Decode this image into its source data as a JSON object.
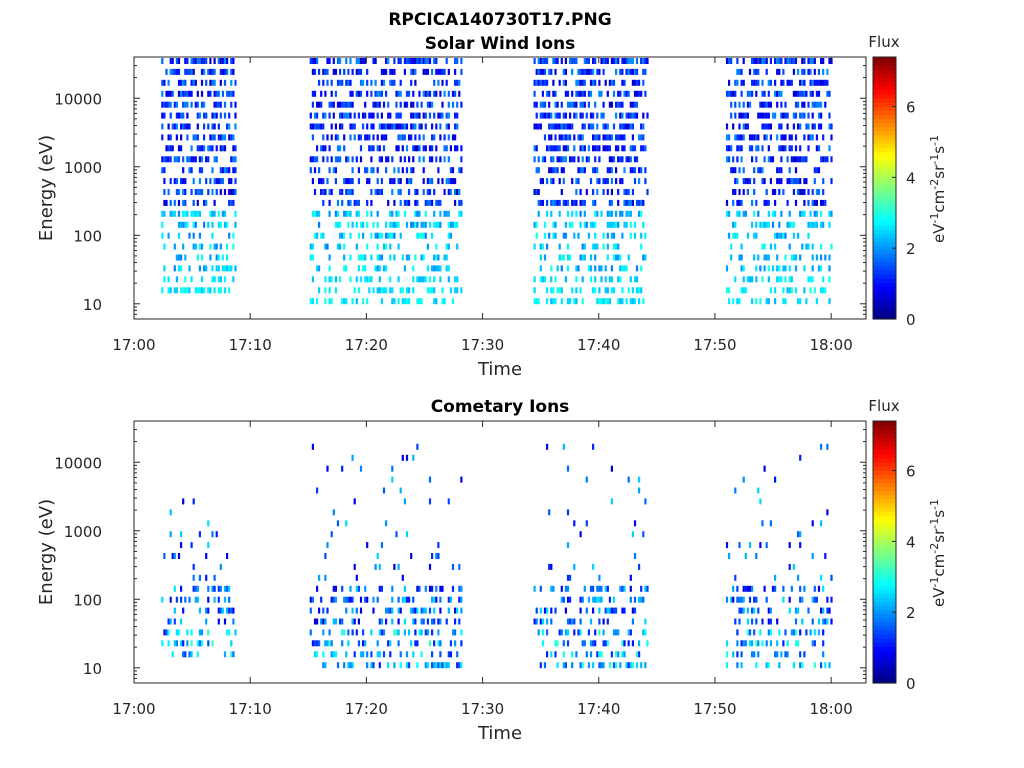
{
  "figure_title": "RPCICA140730T17.PNG",
  "colors": {
    "colormap": "jet",
    "axis": "#262626",
    "background": "#ffffff"
  },
  "chart_data": [
    {
      "type": "heatmap",
      "title": "Solar Wind Ions",
      "xlabel": "Time",
      "ylabel": "Energy (eV)",
      "x_ticks": [
        "17:00",
        "17:10",
        "17:20",
        "17:30",
        "17:40",
        "17:50",
        "18:00"
      ],
      "x_tick_minutes": [
        0,
        10,
        20,
        30,
        40,
        50,
        60
      ],
      "xlim_minutes": [
        0,
        63
      ],
      "y_ticks": [
        "10",
        "100",
        "1000",
        "10000"
      ],
      "y_tick_values": [
        10,
        100,
        1000,
        10000
      ],
      "ylim": [
        6,
        40000
      ],
      "y_scale": "log",
      "colorbar": {
        "title": "Flux",
        "label": "eV-1cm-2sr-1s-1",
        "ticks": [
          "0",
          "2",
          "4",
          "6"
        ],
        "tick_values": [
          0,
          2,
          4,
          6
        ],
        "range": [
          0,
          7.4
        ]
      },
      "segments": [
        {
          "start_min": 2.4,
          "end_min": 8.8,
          "min_energy": 15,
          "max_energy": 36000
        },
        {
          "start_min": 15.2,
          "end_min": 28.2,
          "min_energy": 9,
          "max_energy": 36000
        },
        {
          "start_min": 34.5,
          "end_min": 44.2,
          "min_energy": 9,
          "max_energy": 36000
        },
        {
          "start_min": 51.0,
          "end_min": 60.0,
          "min_energy": 9,
          "max_energy": 36000
        }
      ]
    },
    {
      "type": "heatmap",
      "title": "Cometary Ions",
      "xlabel": "Time",
      "ylabel": "Energy (eV)",
      "x_ticks": [
        "17:00",
        "17:10",
        "17:20",
        "17:30",
        "17:40",
        "17:50",
        "18:00"
      ],
      "x_tick_minutes": [
        0,
        10,
        20,
        30,
        40,
        50,
        60
      ],
      "xlim_minutes": [
        0,
        63
      ],
      "y_ticks": [
        "10",
        "100",
        "1000",
        "10000"
      ],
      "y_tick_values": [
        10,
        100,
        1000,
        10000
      ],
      "ylim": [
        6,
        40000
      ],
      "y_scale": "log",
      "colorbar": {
        "title": "Flux",
        "label": "eV-1cm-2sr-1s-1",
        "ticks": [
          "0",
          "2",
          "4",
          "6"
        ],
        "tick_values": [
          0,
          2,
          4,
          6
        ],
        "range": [
          0,
          7.4
        ]
      },
      "segments": [
        {
          "start_min": 2.4,
          "end_min": 8.8,
          "min_energy": 15,
          "max_energy": 15000
        },
        {
          "start_min": 15.2,
          "end_min": 28.2,
          "min_energy": 9,
          "max_energy": 30000
        },
        {
          "start_min": 34.5,
          "end_min": 44.2,
          "min_energy": 9,
          "max_energy": 25000
        },
        {
          "start_min": 51.0,
          "end_min": 60.0,
          "min_energy": 9,
          "max_energy": 22000
        }
      ]
    }
  ]
}
